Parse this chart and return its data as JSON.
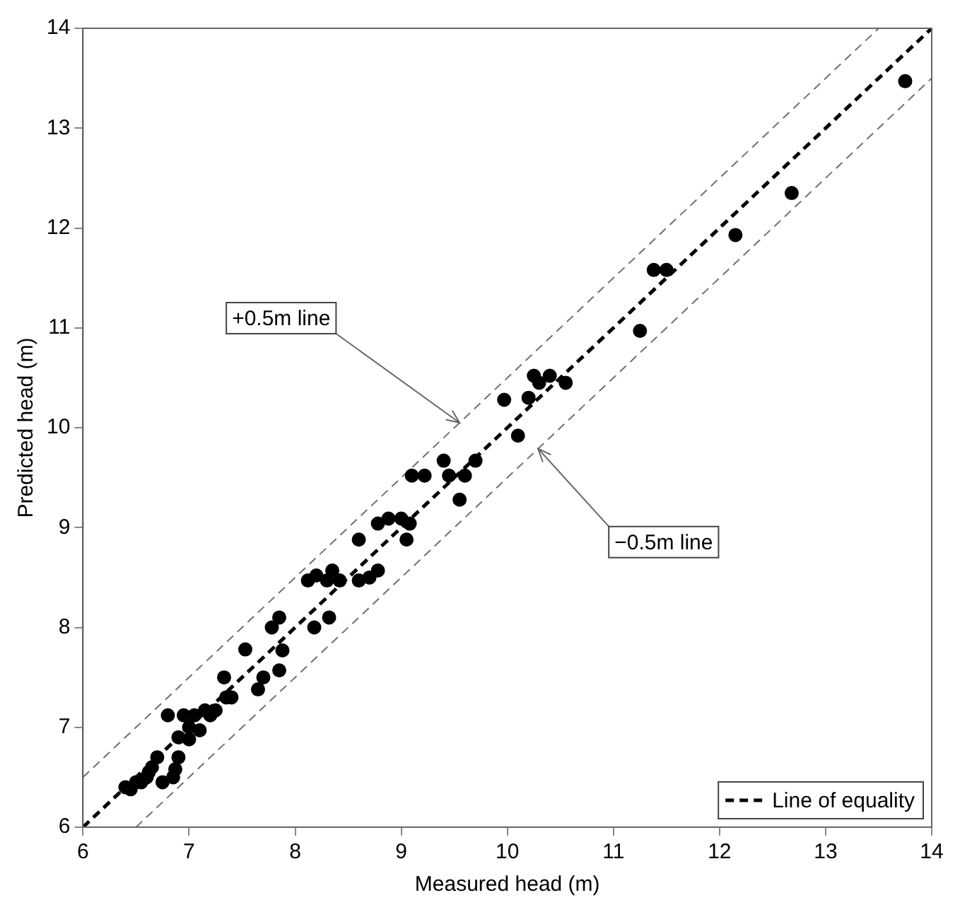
{
  "chart_data": {
    "type": "scatter",
    "xlabel": "Measured head (m)",
    "ylabel": "Predicted head (m)",
    "xlim": [
      6,
      14
    ],
    "ylim": [
      6,
      14
    ],
    "xticks": [
      6,
      7,
      8,
      9,
      10,
      11,
      12,
      13,
      14
    ],
    "yticks": [
      6,
      7,
      8,
      9,
      10,
      11,
      12,
      13,
      14
    ],
    "grid": false,
    "legend": "bottom right",
    "series": [
      {
        "color": "#000000",
        "marker": "circle",
        "x": [
          6.4,
          6.45,
          6.5,
          6.55,
          6.6,
          6.62,
          6.65,
          6.7,
          6.75,
          6.8,
          6.85,
          6.87,
          6.9,
          6.9,
          6.95,
          7.0,
          7.0,
          7.05,
          7.1,
          7.15,
          7.2,
          7.25,
          7.33,
          7.35,
          7.4,
          7.53,
          7.65,
          7.7,
          7.78,
          7.85,
          7.85,
          7.88,
          8.12,
          8.18,
          8.2,
          8.3,
          8.32,
          8.35,
          8.42,
          8.6,
          8.6,
          8.7,
          8.78,
          8.78,
          8.88,
          9.0,
          9.05,
          9.08,
          9.1,
          9.22,
          9.4,
          9.45,
          9.55,
          9.6,
          9.7,
          9.97,
          10.1,
          10.2,
          10.25,
          10.3,
          10.4,
          10.55,
          11.25,
          11.38,
          11.5,
          12.15,
          12.68,
          13.75
        ],
        "values": [
          6.4,
          6.38,
          6.45,
          6.45,
          6.5,
          6.55,
          6.6,
          6.7,
          6.45,
          7.12,
          6.5,
          6.58,
          6.7,
          6.9,
          7.12,
          7.0,
          6.88,
          7.12,
          6.97,
          7.17,
          7.12,
          7.17,
          7.5,
          7.3,
          7.3,
          7.78,
          7.38,
          7.5,
          8.0,
          8.1,
          7.57,
          7.77,
          8.47,
          8.0,
          8.52,
          8.47,
          8.1,
          8.57,
          8.47,
          8.88,
          8.47,
          8.5,
          8.57,
          9.04,
          9.09,
          9.09,
          8.88,
          9.04,
          9.52,
          9.52,
          9.67,
          9.52,
          9.28,
          9.52,
          9.67,
          10.28,
          9.92,
          10.3,
          10.52,
          10.45,
          10.52,
          10.45,
          10.97,
          11.58,
          11.58,
          11.93,
          12.35,
          13.47
        ]
      },
      {
        "type": "line",
        "name": "Line of equality",
        "color": "#000000",
        "line_style": "dashed",
        "marker": "none",
        "x": [
          6,
          14
        ],
        "values": [
          6,
          14
        ]
      },
      {
        "type": "line",
        "color": "#707070",
        "line_style": "dashed",
        "marker": "none",
        "x": [
          6,
          13.5
        ],
        "values": [
          6.5,
          14
        ]
      },
      {
        "type": "line",
        "color": "#707070",
        "line_style": "dashed",
        "marker": "none",
        "x": [
          6.5,
          14
        ],
        "values": [
          6,
          13.5
        ]
      }
    ],
    "annotations": [
      {
        "text": "+0.5m line",
        "x": 9.55,
        "y": 10.05
      },
      {
        "text": "−0.5m line",
        "x": 10.29,
        "y": 9.79
      }
    ]
  }
}
